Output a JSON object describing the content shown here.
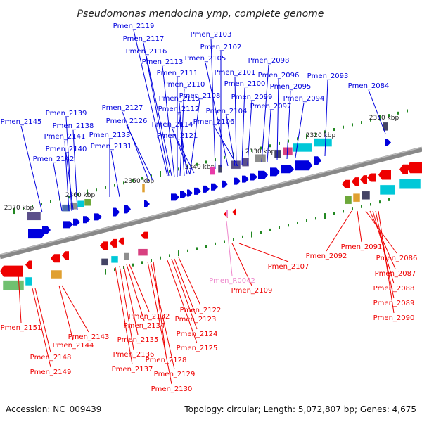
{
  "title": "Pseudomonas mendocina ymp, complete genome",
  "footer": {
    "accession": "Accession: NC_009439",
    "topology": "Topology: circular; Length: 5,072,807 bp; Genes: 4,675"
  },
  "colors": {
    "forward": "#0000dd",
    "reverse": "#ee0000",
    "rna": "#ee88cc",
    "backbone": "#888888",
    "tick": "#228822"
  },
  "kbp_labels": [
    "2310 kbp",
    "2320 kbp",
    "2330 kbp",
    "2340 kbp",
    "2350 kbp",
    "2360 kbp",
    "2370 kbp"
  ],
  "forward_genes": [
    "Pmen_2119",
    "Pmen_2117",
    "Pmen_2116",
    "Pmen_2113",
    "Pmen_2111",
    "Pmen_2110",
    "Pmen_2115",
    "Pmen_2108",
    "Pmen_2112",
    "Pmen_2114",
    "Pmen_2121",
    "Pmen_2127",
    "Pmen_2126",
    "Pmen_2103",
    "Pmen_2102",
    "Pmen_2105",
    "Pmen_2101",
    "Pmen_2100",
    "Pmen_2099",
    "Pmen_2104",
    "Pmen_2106",
    "Pmen_2098",
    "Pmen_2096",
    "Pmen_2095",
    "Pmen_2097",
    "Pmen_2094",
    "Pmen_2093",
    "Pmen_2084",
    "Pmen_2145",
    "Pmen_2139",
    "Pmen_2138",
    "Pmen_2141",
    "Pmen_2133",
    "Pmen_2140",
    "Pmen_2131",
    "Pmen_2142"
  ],
  "reverse_genes": [
    "Pmen_2092",
    "Pmen_2091",
    "Pmen_2086",
    "Pmen_2087",
    "Pmen_2088",
    "Pmen_2089",
    "Pmen_2090",
    "Pmen_2107",
    "Pmen_R0042",
    "Pmen_2109",
    "Pmen_2122",
    "Pmen_2123",
    "Pmen_2124",
    "Pmen_2125",
    "Pmen_2132",
    "Pmen_2134",
    "Pmen_2135",
    "Pmen_2136",
    "Pmen_2137",
    "Pmen_2128",
    "Pmen_2129",
    "Pmen_2130",
    "Pmen_2151",
    "Pmen_2143",
    "Pmen_2144",
    "Pmen_2148",
    "Pmen_2149"
  ]
}
